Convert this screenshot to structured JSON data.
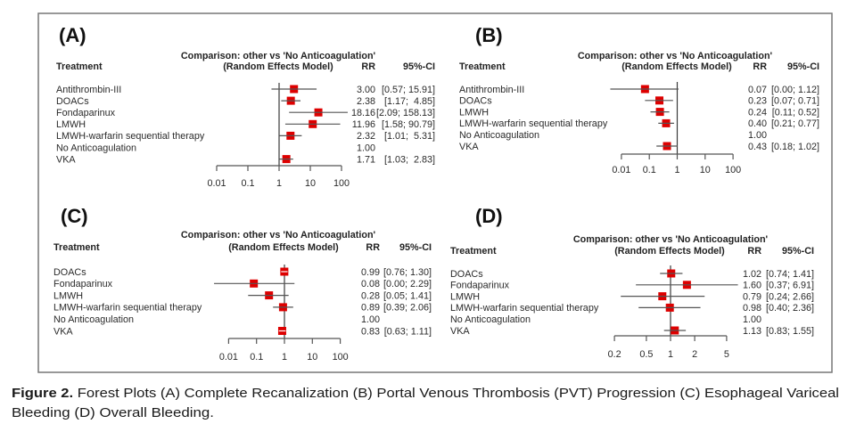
{
  "figure": {
    "caption_bold": "Figure 2.",
    "caption_line1": " Forest Plots (A) Complete Recanalization (B) Portal Venous Thrombosis (PVT) Progression (C) Esophageal Variceal",
    "caption_line2": "Bleeding (D) Overall Bleeding."
  },
  "colors": {
    "square": "#dd0000",
    "line": "#555555"
  },
  "chart_data": [
    {
      "type": "scatter",
      "variant": "forest",
      "panel": "(A)",
      "outcome": "Complete Recanalization",
      "title": "Comparison: other vs 'No Anticoagulation'",
      "subtitle": "(Random Effects Model)",
      "columns": {
        "treatment": "Treatment",
        "effect": "RR",
        "ci": "95%-CI"
      },
      "xscale": "log",
      "xlim": [
        0.01,
        100
      ],
      "xticks": [
        0.01,
        0.1,
        1,
        10,
        100
      ],
      "xtick_labels": [
        "0.01",
        "0.1",
        "1",
        "10",
        "100"
      ],
      "reference": 1,
      "rows": [
        {
          "treatment": "Antithrombin-III",
          "rr": 3.0,
          "ci": [
            0.57,
            15.91
          ],
          "rr_label": "3.00",
          "ci_label": "[0.57; 15.91]"
        },
        {
          "treatment": "DOACs",
          "rr": 2.38,
          "ci": [
            1.17,
            4.85
          ],
          "rr_label": "2.38",
          "ci_label": "[1.17;  4.85]"
        },
        {
          "treatment": "Fondaparinux",
          "rr": 18.16,
          "ci": [
            2.09,
            158.13
          ],
          "rr_label": "18.16",
          "ci_label": "[2.09; 158.13]"
        },
        {
          "treatment": "LMWH",
          "rr": 11.96,
          "ci": [
            1.58,
            90.79
          ],
          "rr_label": "11.96",
          "ci_label": "[1.58; 90.79]"
        },
        {
          "treatment": "LMWH-warfarin sequential therapy",
          "rr": 2.32,
          "ci": [
            1.01,
            5.31
          ],
          "rr_label": "2.32",
          "ci_label": "[1.01;  5.31]"
        },
        {
          "treatment": "No Anticoagulation",
          "rr": 1.0,
          "ci": null,
          "rr_label": "1.00",
          "ci_label": ""
        },
        {
          "treatment": "VKA",
          "rr": 1.71,
          "ci": [
            1.03,
            2.83
          ],
          "rr_label": "1.71",
          "ci_label": "[1.03;  2.83]"
        }
      ]
    },
    {
      "type": "scatter",
      "variant": "forest",
      "panel": "(B)",
      "outcome": "Portal Venous Thrombosis (PVT) Progression",
      "title": "Comparison: other vs 'No Anticoagulation'",
      "subtitle": "(Random Effects Model)",
      "columns": {
        "treatment": "Treatment",
        "effect": "RR",
        "ci": "95%-CI"
      },
      "xscale": "log",
      "xlim": [
        0.01,
        100
      ],
      "xticks": [
        0.01,
        0.1,
        1,
        10,
        100
      ],
      "xtick_labels": [
        "0.01",
        "0.1",
        "1",
        "10",
        "100"
      ],
      "reference": 1,
      "rows": [
        {
          "treatment": "Antithrombin-III",
          "rr": 0.07,
          "ci": [
            0.004,
            1.12
          ],
          "rr_label": "0.07",
          "ci_label": "[0.00; 1.12]"
        },
        {
          "treatment": "DOACs",
          "rr": 0.23,
          "ci": [
            0.07,
            0.71
          ],
          "rr_label": "0.23",
          "ci_label": "[0.07; 0.71]"
        },
        {
          "treatment": "LMWH",
          "rr": 0.24,
          "ci": [
            0.11,
            0.52
          ],
          "rr_label": "0.24",
          "ci_label": "[0.11; 0.52]"
        },
        {
          "treatment": "LMWH-warfarin sequential therapy",
          "rr": 0.4,
          "ci": [
            0.21,
            0.77
          ],
          "rr_label": "0.40",
          "ci_label": "[0.21; 0.77]"
        },
        {
          "treatment": "No Anticoagulation",
          "rr": 1.0,
          "ci": null,
          "rr_label": "1.00",
          "ci_label": ""
        },
        {
          "treatment": "VKA",
          "rr": 0.43,
          "ci": [
            0.18,
            1.02
          ],
          "rr_label": "0.43",
          "ci_label": "[0.18; 1.02]"
        }
      ]
    },
    {
      "type": "scatter",
      "variant": "forest",
      "panel": "(C)",
      "outcome": "Esophageal Variceal Bleeding",
      "title": "Comparison: other vs 'No Anticoagulation'",
      "subtitle": "(Random Effects Model)",
      "columns": {
        "treatment": "Treatment",
        "effect": "RR",
        "ci": "95%-CI"
      },
      "xscale": "log",
      "xlim": [
        0.01,
        100
      ],
      "xticks": [
        0.01,
        0.1,
        1,
        10,
        100
      ],
      "xtick_labels": [
        "0.01",
        "0.1",
        "1",
        "10",
        "100"
      ],
      "reference": 1,
      "rows": [
        {
          "treatment": "DOACs",
          "rr": 0.99,
          "ci": [
            0.76,
            1.3
          ],
          "rr_label": "0.99",
          "ci_label": "[0.76; 1.30]"
        },
        {
          "treatment": "Fondaparinux",
          "rr": 0.08,
          "ci": [
            0.003,
            2.29
          ],
          "rr_label": "0.08",
          "ci_label": "[0.00; 2.29]"
        },
        {
          "treatment": "LMWH",
          "rr": 0.28,
          "ci": [
            0.05,
            1.41
          ],
          "rr_label": "0.28",
          "ci_label": "[0.05; 1.41]"
        },
        {
          "treatment": "LMWH-warfarin sequential therapy",
          "rr": 0.89,
          "ci": [
            0.39,
            2.06
          ],
          "rr_label": "0.89",
          "ci_label": "[0.39; 2.06]"
        },
        {
          "treatment": "No Anticoagulation",
          "rr": 1.0,
          "ci": null,
          "rr_label": "1.00",
          "ci_label": ""
        },
        {
          "treatment": "VKA",
          "rr": 0.83,
          "ci": [
            0.63,
            1.11
          ],
          "rr_label": "0.83",
          "ci_label": "[0.63; 1.11]"
        }
      ]
    },
    {
      "type": "scatter",
      "variant": "forest",
      "panel": "(D)",
      "outcome": "Overall Bleeding",
      "title": "Comparison: other vs 'No Anticoagulation'",
      "subtitle": "(Random Effects Model)",
      "columns": {
        "treatment": "Treatment",
        "effect": "RR",
        "ci": "95%-CI"
      },
      "xscale": "log",
      "xlim": [
        0.2,
        5
      ],
      "xticks": [
        0.2,
        0.5,
        1,
        2,
        5
      ],
      "xtick_labels": [
        "0.2",
        "0.5",
        "1",
        "2",
        "5"
      ],
      "reference": 1,
      "rows": [
        {
          "treatment": "DOACs",
          "rr": 1.02,
          "ci": [
            0.74,
            1.41
          ],
          "rr_label": "1.02",
          "ci_label": "[0.74; 1.41]"
        },
        {
          "treatment": "Fondaparinux",
          "rr": 1.6,
          "ci": [
            0.37,
            6.91
          ],
          "rr_label": "1.60",
          "ci_label": "[0.37; 6.91]"
        },
        {
          "treatment": "LMWH",
          "rr": 0.79,
          "ci": [
            0.24,
            2.66
          ],
          "rr_label": "0.79",
          "ci_label": "[0.24; 2.66]"
        },
        {
          "treatment": "LMWH-warfarin sequential therapy",
          "rr": 0.98,
          "ci": [
            0.4,
            2.36
          ],
          "rr_label": "0.98",
          "ci_label": "[0.40; 2.36]"
        },
        {
          "treatment": "No Anticoagulation",
          "rr": 1.0,
          "ci": null,
          "rr_label": "1.00",
          "ci_label": ""
        },
        {
          "treatment": "VKA",
          "rr": 1.13,
          "ci": [
            0.83,
            1.55
          ],
          "rr_label": "1.13",
          "ci_label": "[0.83; 1.55]"
        }
      ]
    }
  ]
}
